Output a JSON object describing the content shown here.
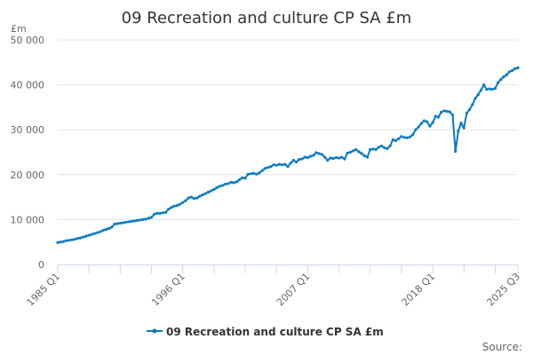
{
  "chart_data": {
    "type": "line",
    "title": "09 Recreation and culture CP SA £m",
    "ylabel": "£m",
    "xlabel": "",
    "ylim": [
      0,
      50000
    ],
    "yticks": [
      0,
      10000,
      20000,
      30000,
      40000,
      50000
    ],
    "ytick_labels": [
      "0",
      "10 000",
      "20 000",
      "30 000",
      "40 000",
      "50 000"
    ],
    "x_start": "1985 Q1",
    "x_end": "2025 Q3",
    "xtick_labels": [
      "1985 Q1",
      "1996 Q1",
      "2007 Q1",
      "2018 Q1",
      "2025 Q3"
    ],
    "grid": "horizontal",
    "legend_position": "bottom",
    "series": [
      {
        "name": "09 Recreation and culture CP SA £m",
        "color": "#0a7bc1",
        "values": [
          4900,
          5000,
          5100,
          5300,
          5400,
          5500,
          5600,
          5800,
          5900,
          6100,
          6300,
          6500,
          6700,
          6900,
          7100,
          7300,
          7600,
          7800,
          8000,
          8300,
          9000,
          9100,
          9200,
          9300,
          9400,
          9500,
          9600,
          9700,
          9800,
          9900,
          10000,
          10100,
          10300,
          10500,
          11200,
          11400,
          11400,
          11500,
          11600,
          12300,
          12700,
          13000,
          13100,
          13400,
          13800,
          14200,
          14800,
          15000,
          14700,
          14800,
          15200,
          15500,
          15800,
          16100,
          16400,
          16700,
          17100,
          17400,
          17600,
          17900,
          18000,
          18300,
          18200,
          18400,
          18900,
          19300,
          19200,
          20100,
          20200,
          20300,
          20100,
          20400,
          20900,
          21400,
          21600,
          21800,
          22200,
          22100,
          22300,
          22200,
          22300,
          21800,
          22600,
          23200,
          22800,
          23400,
          23500,
          23900,
          23800,
          24100,
          24300,
          24900,
          24700,
          24500,
          23900,
          23200,
          23700,
          23600,
          23800,
          23700,
          23900,
          23500,
          24800,
          25000,
          25300,
          25600,
          25100,
          24700,
          24200,
          23900,
          25600,
          25700,
          25600,
          26100,
          26400,
          26000,
          25800,
          26400,
          27800,
          27600,
          28000,
          28500,
          28300,
          28200,
          28400,
          28900,
          30000,
          30600,
          31400,
          32000,
          31800,
          30800,
          31600,
          33000,
          32800,
          33900,
          34200,
          34100,
          34000,
          33300,
          25200,
          29700,
          31500,
          30400,
          33700,
          34500,
          35600,
          37000,
          37800,
          38800,
          40000,
          39000,
          39100,
          39000,
          39200,
          40500,
          41200,
          41800,
          42200,
          42900,
          43200,
          43600,
          43800
        ]
      }
    ]
  },
  "footer": {
    "source_label": "Source:"
  }
}
